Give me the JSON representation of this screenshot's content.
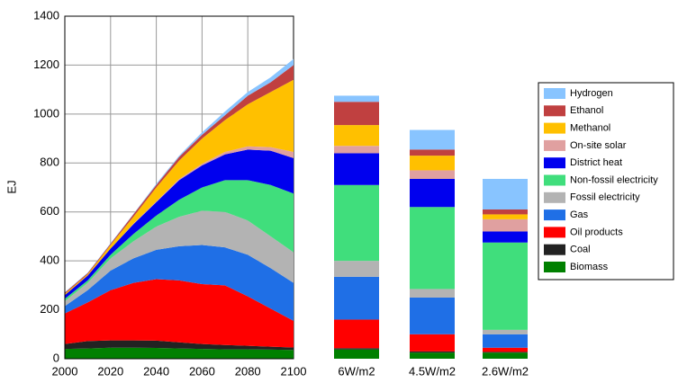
{
  "chart_data": [
    {
      "type": "area",
      "y_label": "EJ",
      "x": [
        2000,
        2010,
        2020,
        2030,
        2040,
        2050,
        2060,
        2070,
        2080,
        2090,
        2100
      ],
      "xlim": [
        2000,
        2100
      ],
      "xticks": [
        2000,
        2020,
        2040,
        2060,
        2080,
        2100
      ],
      "ylim": [
        0,
        1400
      ],
      "yticks": [
        0,
        200,
        400,
        600,
        800,
        1000,
        1200,
        1400
      ],
      "grid": true,
      "series": [
        {
          "name": "Biomass",
          "color": "#008000",
          "values": [
            40,
            42,
            45,
            45,
            44,
            42,
            40,
            38,
            38,
            37,
            36
          ]
        },
        {
          "name": "Coal",
          "color": "#222222",
          "values": [
            20,
            30,
            30,
            30,
            30,
            25,
            20,
            18,
            15,
            12,
            10
          ]
        },
        {
          "name": "Oil products",
          "color": "#ff0000",
          "values": [
            125,
            158,
            205,
            235,
            251,
            253,
            245,
            244,
            202,
            156,
            109
          ]
        },
        {
          "name": "Gas",
          "color": "#1f6fe6",
          "values": [
            30,
            50,
            80,
            100,
            120,
            140,
            160,
            155,
            170,
            165,
            155
          ]
        },
        {
          "name": "Fossil electricity",
          "color": "#b3b3b3",
          "values": [
            20,
            30,
            50,
            70,
            95,
            120,
            140,
            145,
            140,
            130,
            125
          ]
        },
        {
          "name": "Non-fossil electricity",
          "color": "#40de7c",
          "values": [
            10,
            10,
            15,
            30,
            45,
            70,
            95,
            130,
            165,
            210,
            240
          ]
        },
        {
          "name": "District heat",
          "color": "#0000ee",
          "values": [
            15,
            20,
            25,
            40,
            55,
            80,
            90,
            105,
            125,
            140,
            145
          ]
        },
        {
          "name": "On-site solar",
          "color": "#e0a0a0",
          "values": [
            0,
            0,
            0,
            2,
            3,
            5,
            7,
            10,
            13,
            15,
            25
          ]
        },
        {
          "name": "Methanol",
          "color": "#ffc000",
          "values": [
            5,
            5,
            15,
            28,
            57,
            75,
            103,
            130,
            172,
            225,
            295
          ]
        },
        {
          "name": "Ethanol",
          "color": "#c04040",
          "values": [
            5,
            5,
            5,
            10,
            10,
            15,
            15,
            20,
            35,
            40,
            60
          ]
        },
        {
          "name": "Hydrogen",
          "color": "#88c4ff",
          "values": [
            2,
            2,
            2,
            2,
            5,
            5,
            10,
            15,
            15,
            20,
            25
          ]
        }
      ]
    },
    {
      "type": "bar",
      "categories": [
        "6W/m2",
        "4.5W/m2",
        "2.6W/m2"
      ],
      "series": [
        {
          "values": [
            38,
            25,
            25
          ]
        },
        {
          "values": [
            5,
            5,
            3
          ]
        },
        {
          "values": [
            117,
            70,
            17
          ]
        },
        {
          "values": [
            175,
            150,
            55
          ]
        },
        {
          "values": [
            65,
            35,
            18
          ]
        },
        {
          "values": [
            310,
            335,
            357
          ]
        },
        {
          "values": [
            130,
            115,
            45
          ]
        },
        {
          "values": [
            30,
            35,
            50
          ]
        },
        {
          "values": [
            85,
            60,
            20
          ]
        },
        {
          "values": [
            95,
            25,
            20
          ]
        },
        {
          "values": [
            25,
            80,
            125
          ]
        }
      ]
    }
  ]
}
